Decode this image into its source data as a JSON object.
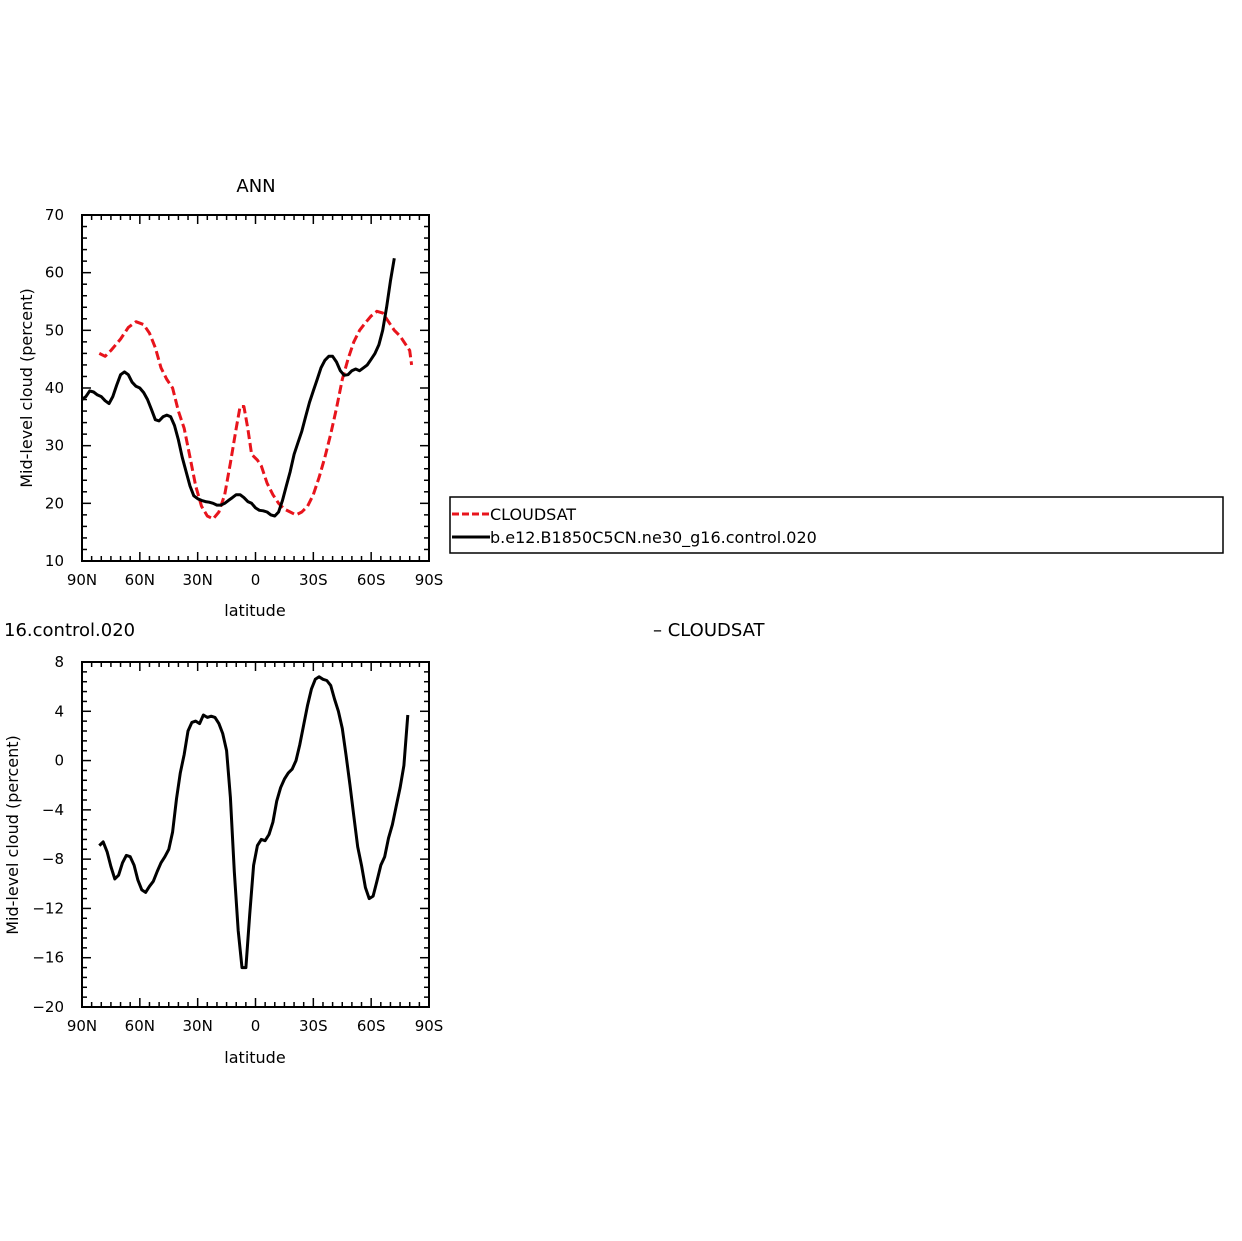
{
  "chart_data": [
    {
      "type": "line",
      "title": "ANN",
      "xlabel": "latitude",
      "ylabel": "Mid-level cloud (percent)",
      "xlim": [
        90,
        -90
      ],
      "ylim": [
        10,
        70
      ],
      "x_ticks": [
        90,
        60,
        30,
        0,
        -30,
        -60,
        -90
      ],
      "x_tick_labels": [
        "90N",
        "60N",
        "30N",
        "0",
        "30S",
        "60S",
        "90S"
      ],
      "y_ticks": [
        10,
        20,
        30,
        40,
        50,
        60,
        70
      ],
      "y_tick_labels": [
        "10",
        "20",
        "30",
        "40",
        "50",
        "60",
        "70"
      ],
      "grid": false,
      "legend": {
        "placement": "right",
        "entries": [
          "CLOUDSAT",
          "b.e12.B1850C5CN.ne30_g16.control.020"
        ]
      },
      "series": [
        {
          "name": "CLOUDSAT",
          "color": "#e8141c",
          "dash": "dashed",
          "points": [
            [
              81,
              46
            ],
            [
              78,
              45.5
            ],
            [
              75,
              46.5
            ],
            [
              70,
              48.5
            ],
            [
              66,
              50.5
            ],
            [
              62,
              51.5
            ],
            [
              58,
              51
            ],
            [
              55,
              49.5
            ],
            [
              52,
              47
            ],
            [
              49,
              43.5
            ],
            [
              46,
              41.5
            ],
            [
              43,
              40
            ],
            [
              40,
              36
            ],
            [
              37,
              33
            ],
            [
              34,
              28
            ],
            [
              31,
              23
            ],
            [
              28,
              19.5
            ],
            [
              25,
              17.8
            ],
            [
              22,
              17.3
            ],
            [
              19,
              18.5
            ],
            [
              16,
              21.5
            ],
            [
              13,
              27
            ],
            [
              10,
              33
            ],
            [
              8,
              36.8
            ],
            [
              6,
              36.8
            ],
            [
              4,
              33
            ],
            [
              2,
              28.5
            ],
            [
              -1,
              27.5
            ],
            [
              -3,
              26.5
            ],
            [
              -6,
              23.5
            ],
            [
              -9,
              21.5
            ],
            [
              -12,
              20
            ],
            [
              -15,
              19
            ],
            [
              -18,
              18.5
            ],
            [
              -21,
              18
            ],
            [
              -24,
              18.5
            ],
            [
              -27,
              19.5
            ],
            [
              -30,
              21.5
            ],
            [
              -33,
              24.5
            ],
            [
              -36,
              28
            ],
            [
              -39,
              32
            ],
            [
              -42,
              36.5
            ],
            [
              -45,
              41.5
            ],
            [
              -48,
              45
            ],
            [
              -51,
              48
            ],
            [
              -54,
              50
            ],
            [
              -57,
              51.3
            ],
            [
              -60,
              52.5
            ],
            [
              -63,
              53.3
            ],
            [
              -66,
              53
            ],
            [
              -69,
              51.5
            ],
            [
              -72,
              50
            ],
            [
              -75,
              49
            ],
            [
              -78,
              47.5
            ],
            [
              -80,
              46.5
            ],
            [
              -81,
              44
            ]
          ]
        },
        {
          "name": "b.e12.B1850C5CN.ne30_g16.control.020",
          "color": "#000000",
          "dash": "solid",
          "points": [
            [
              90,
              38
            ],
            [
              88,
              38.5
            ],
            [
              86,
              39.5
            ],
            [
              84,
              39.3
            ],
            [
              82,
              38.8
            ],
            [
              80,
              38.5
            ],
            [
              78,
              37.8
            ],
            [
              76,
              37.3
            ],
            [
              74,
              38.5
            ],
            [
              72,
              40.5
            ],
            [
              70,
              42.3
            ],
            [
              68,
              42.8
            ],
            [
              66,
              42.3
            ],
            [
              64,
              41
            ],
            [
              62,
              40.3
            ],
            [
              60,
              40
            ],
            [
              58,
              39.2
            ],
            [
              56,
              38
            ],
            [
              54,
              36.3
            ],
            [
              52,
              34.5
            ],
            [
              50,
              34.3
            ],
            [
              48,
              35
            ],
            [
              46,
              35.3
            ],
            [
              44,
              35
            ],
            [
              42,
              33.5
            ],
            [
              40,
              31
            ],
            [
              38,
              28
            ],
            [
              36,
              25.5
            ],
            [
              34,
              23
            ],
            [
              32,
              21.3
            ],
            [
              30,
              20.8
            ],
            [
              28,
              20.5
            ],
            [
              26,
              20.3
            ],
            [
              24,
              20.2
            ],
            [
              22,
              20
            ],
            [
              20,
              19.7
            ],
            [
              18,
              19.7
            ],
            [
              16,
              20
            ],
            [
              14,
              20.5
            ],
            [
              12,
              21
            ],
            [
              10,
              21.5
            ],
            [
              8,
              21.5
            ],
            [
              6,
              21
            ],
            [
              4,
              20.3
            ],
            [
              2,
              20
            ],
            [
              0,
              19.2
            ],
            [
              -2,
              18.8
            ],
            [
              -4,
              18.7
            ],
            [
              -6,
              18.5
            ],
            [
              -8,
              18
            ],
            [
              -10,
              17.8
            ],
            [
              -12,
              18.5
            ],
            [
              -14,
              20.5
            ],
            [
              -16,
              23
            ],
            [
              -18,
              25.5
            ],
            [
              -20,
              28.5
            ],
            [
              -22,
              30.5
            ],
            [
              -24,
              32.5
            ],
            [
              -26,
              35
            ],
            [
              -28,
              37.5
            ],
            [
              -30,
              39.5
            ],
            [
              -32,
              41.5
            ],
            [
              -34,
              43.5
            ],
            [
              -36,
              44.8
            ],
            [
              -38,
              45.5
            ],
            [
              -40,
              45.5
            ],
            [
              -42,
              44.5
            ],
            [
              -44,
              43
            ],
            [
              -46,
              42.2
            ],
            [
              -48,
              42.3
            ],
            [
              -50,
              43
            ],
            [
              -52,
              43.3
            ],
            [
              -54,
              43
            ],
            [
              -56,
              43.5
            ],
            [
              -58,
              44
            ],
            [
              -60,
              45
            ],
            [
              -62,
              46
            ],
            [
              -64,
              47.5
            ],
            [
              -66,
              50
            ],
            [
              -68,
              54
            ],
            [
              -70,
              58.5
            ],
            [
              -72,
              62.5
            ]
          ]
        }
      ]
    },
    {
      "type": "line",
      "title": "16.control.020",
      "title2": "– CLOUDSAT",
      "xlabel": "latitude",
      "ylabel": "Mid-level cloud (percent)",
      "xlim": [
        90,
        -90
      ],
      "ylim": [
        -20,
        8
      ],
      "x_ticks": [
        90,
        60,
        30,
        0,
        -30,
        -60,
        -90
      ],
      "x_tick_labels": [
        "90N",
        "60N",
        "30N",
        "0",
        "30S",
        "60S",
        "90S"
      ],
      "y_ticks": [
        -20,
        -16,
        -12,
        -8,
        -4,
        0,
        4,
        8
      ],
      "y_tick_labels": [
        "−20",
        "−16",
        "−12",
        "−8",
        "−4",
        "0",
        "4",
        "8"
      ],
      "grid": false,
      "series": [
        {
          "color": "#000000",
          "dash": "solid",
          "points": [
            [
              81,
              -6.9
            ],
            [
              79,
              -6.6
            ],
            [
              77,
              -7.4
            ],
            [
              75,
              -8.6
            ],
            [
              73,
              -9.6
            ],
            [
              71,
              -9.3
            ],
            [
              69,
              -8.3
            ],
            [
              67,
              -7.7
            ],
            [
              65,
              -7.8
            ],
            [
              63,
              -8.5
            ],
            [
              61,
              -9.7
            ],
            [
              59,
              -10.5
            ],
            [
              57,
              -10.7
            ],
            [
              55,
              -10.2
            ],
            [
              53,
              -9.8
            ],
            [
              51,
              -9
            ],
            [
              49,
              -8.3
            ],
            [
              47,
              -7.8
            ],
            [
              45,
              -7.2
            ],
            [
              43,
              -5.8
            ],
            [
              41,
              -3.1
            ],
            [
              39,
              -1
            ],
            [
              37,
              0.5
            ],
            [
              35,
              2.4
            ],
            [
              33,
              3.1
            ],
            [
              31,
              3.2
            ],
            [
              29,
              3
            ],
            [
              27,
              3.7
            ],
            [
              25,
              3.5
            ],
            [
              23,
              3.6
            ],
            [
              21,
              3.5
            ],
            [
              19,
              3
            ],
            [
              17,
              2.2
            ],
            [
              15,
              0.8
            ],
            [
              13,
              -3
            ],
            [
              11,
              -9
            ],
            [
              9,
              -13.8
            ],
            [
              7,
              -16.8
            ],
            [
              5,
              -16.8
            ],
            [
              3,
              -12.5
            ],
            [
              1,
              -8.5
            ],
            [
              -1,
              -6.9
            ],
            [
              -3,
              -6.4
            ],
            [
              -5,
              -6.5
            ],
            [
              -7,
              -6
            ],
            [
              -9,
              -5
            ],
            [
              -11,
              -3.3
            ],
            [
              -13,
              -2.2
            ],
            [
              -15,
              -1.5
            ],
            [
              -17,
              -1
            ],
            [
              -19,
              -0.7
            ],
            [
              -21,
              0
            ],
            [
              -23,
              1.3
            ],
            [
              -25,
              2.9
            ],
            [
              -27,
              4.5
            ],
            [
              -29,
              5.8
            ],
            [
              -31,
              6.6
            ],
            [
              -33,
              6.8
            ],
            [
              -35,
              6.6
            ],
            [
              -37,
              6.5
            ],
            [
              -39,
              6.1
            ],
            [
              -41,
              5
            ],
            [
              -43,
              4
            ],
            [
              -45,
              2.6
            ],
            [
              -47,
              0.4
            ],
            [
              -49,
              -2
            ],
            [
              -51,
              -4.5
            ],
            [
              -53,
              -7
            ],
            [
              -55,
              -8.5
            ],
            [
              -57,
              -10.3
            ],
            [
              -59,
              -11.2
            ],
            [
              -61,
              -11
            ],
            [
              -63,
              -9.8
            ],
            [
              -65,
              -8.5
            ],
            [
              -67,
              -7.8
            ],
            [
              -69,
              -6.3
            ],
            [
              -71,
              -5.2
            ],
            [
              -73,
              -3.7
            ],
            [
              -75,
              -2.2
            ],
            [
              -77,
              -0.4
            ],
            [
              -79,
              3.7
            ]
          ]
        }
      ]
    }
  ]
}
